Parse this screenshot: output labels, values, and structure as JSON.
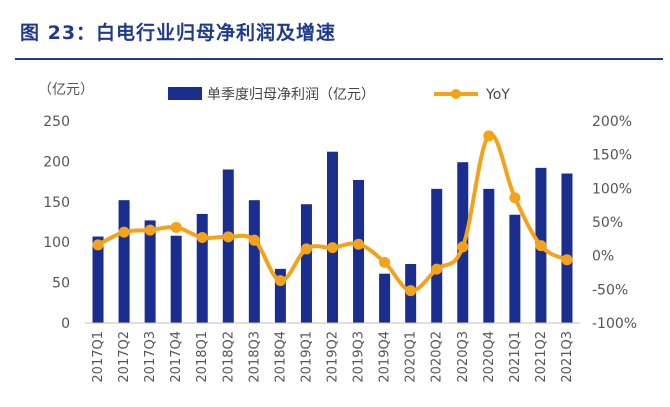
{
  "header": {
    "title": "图 23：白电行业归母净利润及增速"
  },
  "chart_data": {
    "type": "bar+line",
    "unit_label": "（亿元）",
    "categories": [
      "2017Q1",
      "2017Q2",
      "2017Q3",
      "2017Q4",
      "2018Q1",
      "2018Q2",
      "2018Q3",
      "2018Q4",
      "2019Q1",
      "2019Q2",
      "2019Q3",
      "2019Q4",
      "2020Q1",
      "2020Q2",
      "2020Q3",
      "2020Q4",
      "2021Q1",
      "2021Q2",
      "2021Q3"
    ],
    "series": [
      {
        "name": "单季度归母净利润（亿元）",
        "type": "bar",
        "axis": "left",
        "values": [
          107,
          152,
          127,
          108,
          135,
          190,
          152,
          67,
          147,
          212,
          177,
          61,
          73,
          166,
          199,
          166,
          134,
          192,
          185
        ]
      },
      {
        "name": "YoY",
        "type": "line",
        "axis": "right",
        "values": [
          16,
          35,
          38,
          42,
          27,
          28,
          23,
          -37,
          10,
          12,
          17,
          -10,
          -52,
          -20,
          13,
          178,
          86,
          15,
          -6
        ]
      }
    ],
    "left_axis": {
      "ticks": [
        "0",
        "50",
        "100",
        "150",
        "200",
        "250"
      ],
      "ylim": [
        0,
        250
      ]
    },
    "right_axis": {
      "ticks": [
        "-100%",
        "-50%",
        "0%",
        "50%",
        "100%",
        "150%",
        "200%"
      ],
      "ylim": [
        -100,
        200
      ]
    },
    "legend_position": "top",
    "colors": {
      "bar": "#1a2e8f",
      "line": "#f5a21b",
      "title": "#1f3a8a"
    }
  }
}
